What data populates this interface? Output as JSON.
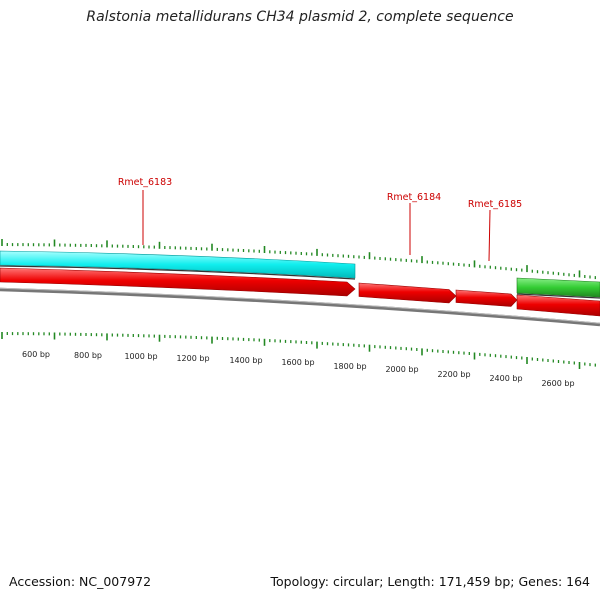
{
  "title": "Ralstonia metallidurans CH34 plasmid 2, complete sequence",
  "footer": {
    "accession": "Accession: NC_007972",
    "summary": "Topology: circular; Length: 171,459 bp; Genes: 164"
  },
  "colors": {
    "cds": "#ee1111",
    "misc_feature_cyan": "#22eeee",
    "misc_feature_green": "#33cc33",
    "backbone": "#777777",
    "ticks": "#228822",
    "gene_labels": "#cc0000"
  },
  "gene_labels": [
    {
      "id": "Rmet_6183",
      "text": "Rmet_6183"
    },
    {
      "id": "Rmet_6184",
      "text": "Rmet_6184"
    },
    {
      "id": "Rmet_6185",
      "text": "Rmet_6185"
    }
  ],
  "scale_labels": [
    "600 bp",
    "800 bp",
    "1000 bp",
    "1200 bp",
    "1400 bp",
    "1600 bp",
    "1800 bp",
    "2000 bp",
    "2200 bp",
    "2400 bp",
    "2600 bp"
  ]
}
